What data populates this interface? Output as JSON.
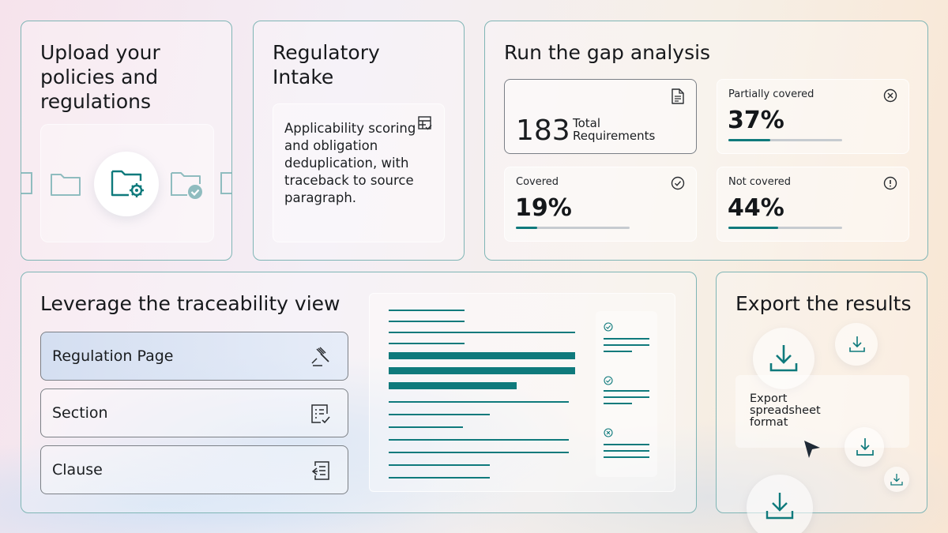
{
  "upload": {
    "title": "Upload your policies and regulations"
  },
  "intake": {
    "title": "Regulatory Intake",
    "description": "Applicability scoring and obligation deduplication, with traceback to source paragraph."
  },
  "gap": {
    "title": "Run the gap analysis",
    "total": {
      "value": "183",
      "label": "Total Requirements"
    },
    "tiles": [
      {
        "label": "Partially covered",
        "value": "37%",
        "fraction": 0.37,
        "icon": "x-circle-icon"
      },
      {
        "label": "Covered",
        "value": "19%",
        "fraction": 0.19,
        "icon": "check-circle-icon"
      },
      {
        "label": "Not covered",
        "value": "44%",
        "fraction": 0.44,
        "icon": "alert-circle-icon"
      }
    ]
  },
  "trace": {
    "title": "Leverage the traceability view",
    "items": [
      {
        "label": "Regulation Page",
        "icon": "gavel-icon",
        "active": true
      },
      {
        "label": "Section",
        "icon": "list-check-icon",
        "active": false
      },
      {
        "label": "Clause",
        "icon": "document-return-icon",
        "active": false
      }
    ]
  },
  "export": {
    "title": "Export the results",
    "option_label": "Export spreadsheet format"
  },
  "colors": {
    "accent": "#0f7a7c",
    "border": "#7fb5b5"
  }
}
